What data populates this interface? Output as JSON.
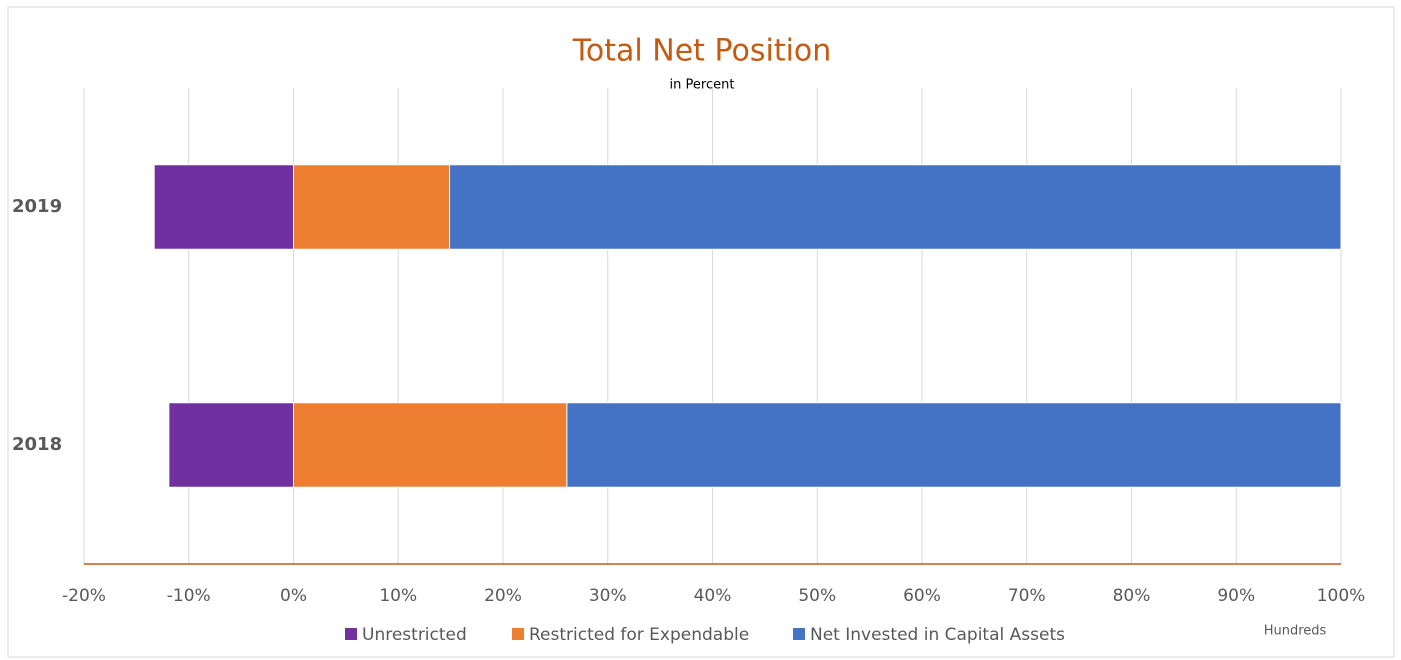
{
  "chart_data": {
    "type": "bar",
    "orientation": "horizontal",
    "stacked": true,
    "title": "Total Net Position",
    "subtitle": "in Percent",
    "display_units": "Hundreds",
    "categories": [
      "2019",
      "2018"
    ],
    "series": [
      {
        "name": "Unrestricted",
        "color": "#7030a0",
        "values": [
          -13.3,
          -11.9
        ]
      },
      {
        "name": "Restricted for Expendable",
        "color": "#ed7d31",
        "values": [
          14.9,
          26.1
        ]
      },
      {
        "name": "Net Invested in Capital Assets",
        "color": "#4472c4",
        "values": [
          85.1,
          73.9
        ]
      }
    ],
    "xlim": [
      -20,
      100
    ],
    "xticks": [
      {
        "value": -20,
        "label": "-20%"
      },
      {
        "value": -10,
        "label": "-10%"
      },
      {
        "value": 0,
        "label": "0%"
      },
      {
        "value": 10,
        "label": "10%"
      },
      {
        "value": 20,
        "label": "20%"
      },
      {
        "value": 30,
        "label": "30%"
      },
      {
        "value": 40,
        "label": "40%"
      },
      {
        "value": 50,
        "label": "50%"
      },
      {
        "value": 60,
        "label": "60%"
      },
      {
        "value": 70,
        "label": "70%"
      },
      {
        "value": 80,
        "label": "80%"
      },
      {
        "value": 90,
        "label": "90%"
      },
      {
        "value": 100,
        "label": "100%"
      }
    ],
    "grid": true,
    "legend": "bottom"
  }
}
